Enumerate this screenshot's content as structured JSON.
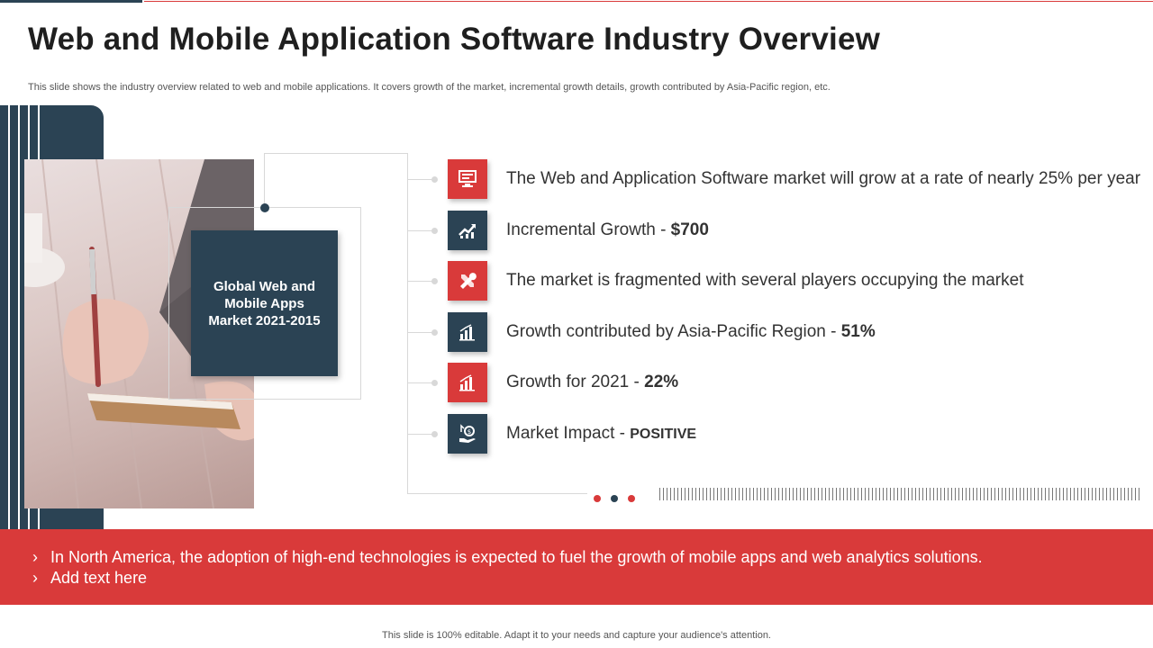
{
  "slide": {
    "title": "Web and Mobile Application Software Industry Overview",
    "subtitle": "This slide shows the industry overview related to web and mobile applications. It covers growth of the market, incremental growth details, growth contributed by Asia-Pacific region, etc.",
    "global_box": "Global Web and Mobile Apps Market 2021-2015"
  },
  "items": [
    {
      "icon": "monitor-icon",
      "color": "red",
      "text": "The Web and Application Software market will grow at a rate of nearly 25% per year",
      "value": ""
    },
    {
      "icon": "growth-chart-icon",
      "color": "dark",
      "text": "Incremental Growth - ",
      "value": "$700"
    },
    {
      "icon": "tools-icon",
      "color": "red",
      "text": "The market is fragmented with several players occupying the market",
      "value": ""
    },
    {
      "icon": "bar-chart-icon",
      "color": "dark",
      "text": "Growth contributed by Asia-Pacific Region - ",
      "value": "51%"
    },
    {
      "icon": "bar-chart-icon",
      "color": "red",
      "text": "Growth for 2021 - ",
      "value": "22%"
    },
    {
      "icon": "money-hand-icon",
      "color": "dark",
      "text": "Market Impact - ",
      "value": "POSITIVE"
    }
  ],
  "banner": {
    "bullet": "›",
    "lines": [
      "In North America, the adoption of high-end technologies is expected to fuel the growth of mobile apps and web analytics solutions.",
      "Add text here"
    ]
  },
  "footer": "This slide is 100% editable. Adapt it to your needs and capture your audience's attention.",
  "colors": {
    "accent_red": "#d93a3a",
    "dark_blue": "#2b4354"
  }
}
